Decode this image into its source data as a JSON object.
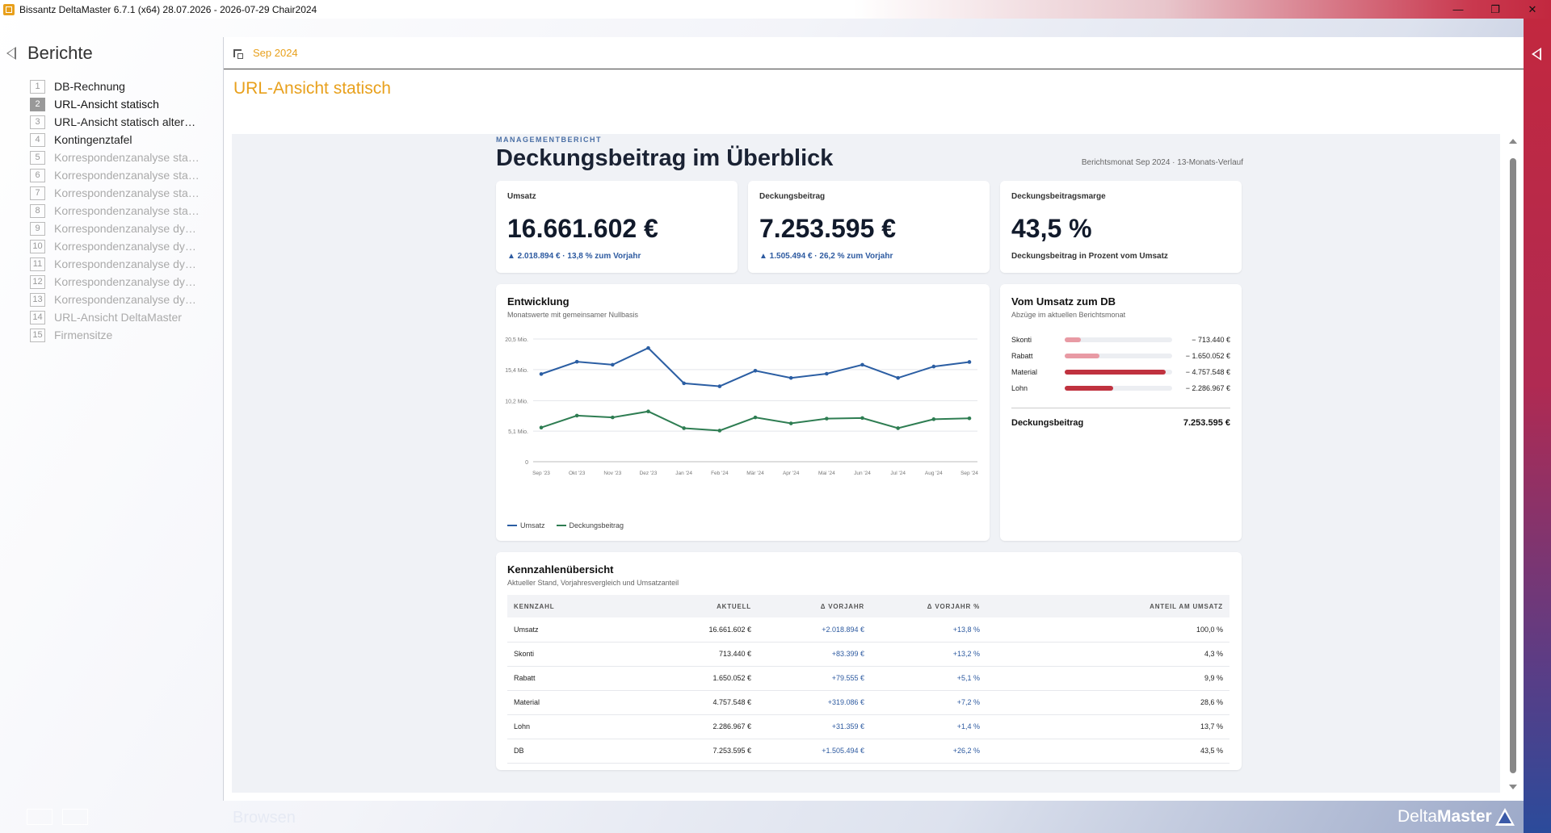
{
  "window": {
    "title": "Bissantz DeltaMaster 6.7.1 (x64) 28.07.2026 - 2026-07-29 Chair2024",
    "minimize": "—",
    "restore": "❐",
    "close": "✕"
  },
  "sidebar": {
    "title": "Berichte",
    "items": [
      {
        "num": "1",
        "label": "DB-Rechnung",
        "state": "normal"
      },
      {
        "num": "2",
        "label": "URL-Ansicht statisch",
        "state": "active"
      },
      {
        "num": "3",
        "label": "URL-Ansicht statisch alternat...",
        "state": "normal"
      },
      {
        "num": "4",
        "label": "Kontingenztafel",
        "state": "normal"
      },
      {
        "num": "5",
        "label": "Korrespondenzanalyse statis...",
        "state": "dim"
      },
      {
        "num": "6",
        "label": "Korrespondenzanalyse statis...",
        "state": "dim"
      },
      {
        "num": "7",
        "label": "Korrespondenzanalyse statis...",
        "state": "dim"
      },
      {
        "num": "8",
        "label": "Korrespondenzanalyse statis...",
        "state": "dim"
      },
      {
        "num": "9",
        "label": "Korrespondenzanalyse dyna...",
        "state": "dim"
      },
      {
        "num": "10",
        "label": "Korrespondenzanalyse dyna...",
        "state": "dim"
      },
      {
        "num": "11",
        "label": "Korrespondenzanalyse dyna...",
        "state": "dim"
      },
      {
        "num": "12",
        "label": "Korrespondenzanalyse dyna...",
        "state": "dim"
      },
      {
        "num": "13",
        "label": "Korrespondenzanalyse dyna...",
        "state": "dim"
      },
      {
        "num": "14",
        "label": "URL-Ansicht DeltaMaster",
        "state": "dim"
      },
      {
        "num": "15",
        "label": "Firmensitze",
        "state": "dim"
      }
    ]
  },
  "footer": {
    "mode": "Browsen",
    "brand_light": "Delta",
    "brand_bold": "Master"
  },
  "main": {
    "period": "Sep 2024",
    "page_title": "URL-Ansicht statisch"
  },
  "report": {
    "eyebrow": "MANAGEMENTBERICHT",
    "title": "Deckungsbeitrag im Überblick",
    "meta": "Berichtsmonat Sep 2024 · 13-Monats-Verlauf",
    "kpis": [
      {
        "label": "Umsatz",
        "value": "16.661.602 €",
        "delta": "▲ 2.018.894 € · 13,8 % zum Vorjahr"
      },
      {
        "label": "Deckungsbeitrag",
        "value": "7.253.595 €",
        "delta": "▲ 1.505.494 € · 26,2 % zum Vorjahr"
      },
      {
        "label": "Deckungsbeitragsmarge",
        "value": "43,5 %",
        "sub": "Deckungsbeitrag in Prozent vom Umsatz"
      }
    ],
    "development": {
      "title": "Entwicklung",
      "subtitle": "Monatswerte mit gemeinsamer Nullbasis"
    },
    "waterfall": {
      "title": "Vom Umsatz zum DB",
      "subtitle": "Abzüge im aktuellen Berichtsmonat",
      "rows": [
        {
          "label": "Skonti",
          "value": "− 713.440 €",
          "amount": 713440,
          "color": "#e89aa4"
        },
        {
          "label": "Rabatt",
          "value": "− 1.650.052 €",
          "amount": 1650052,
          "color": "#e89aa4"
        },
        {
          "label": "Material",
          "value": "− 4.757.548 €",
          "amount": 4757548,
          "color": "#c0323f"
        },
        {
          "label": "Lohn",
          "value": "− 2.286.967 €",
          "amount": 2286967,
          "color": "#c0323f"
        }
      ],
      "total_label": "Deckungsbeitrag",
      "total_value": "7.253.595 €"
    },
    "table": {
      "title": "Kennzahlenübersicht",
      "subtitle": "Aktueller Stand, Vorjahresvergleich und Umsatzanteil",
      "headers": [
        "KENNZAHL",
        "AKTUELL",
        "Δ VORJAHR",
        "Δ VORJAHR %",
        "ANTEIL AM UMSATZ"
      ],
      "rows": [
        [
          "Umsatz",
          "16.661.602 €",
          "+2.018.894 €",
          "+13,8 %",
          "100,0 %"
        ],
        [
          "Skonti",
          "713.440 €",
          "+83.399 €",
          "+13,2 %",
          "4,3 %"
        ],
        [
          "Rabatt",
          "1.650.052 €",
          "+79.555 €",
          "+5,1 %",
          "9,9 %"
        ],
        [
          "Material",
          "4.757.548 €",
          "+319.086 €",
          "+7,2 %",
          "28,6 %"
        ],
        [
          "Lohn",
          "2.286.967 €",
          "+31.359 €",
          "+1,4 %",
          "13,7 %"
        ],
        [
          "DB",
          "7.253.595 €",
          "+1.505.494 €",
          "+26,2 %",
          "43,5 %"
        ]
      ]
    }
  },
  "chart_data": {
    "type": "line",
    "categories": [
      "Sep '23",
      "Okt '23",
      "Nov '23",
      "Dez '23",
      "Jan '24",
      "Feb '24",
      "Mär '24",
      "Apr '24",
      "Mai '24",
      "Jun '24",
      "Jul '24",
      "Aug '24",
      "Sep '24"
    ],
    "series": [
      {
        "name": "Umsatz",
        "color": "#2b5ea3",
        "values": [
          14.65,
          16.7,
          16.2,
          19.0,
          13.1,
          12.6,
          15.2,
          14.0,
          14.7,
          16.2,
          14.0,
          15.9,
          16.66
        ]
      },
      {
        "name": "Deckungsbeitrag",
        "color": "#2e7d52",
        "values": [
          5.7,
          7.7,
          7.4,
          8.4,
          5.6,
          5.2,
          7.4,
          6.4,
          7.2,
          7.3,
          5.6,
          7.1,
          7.25
        ]
      }
    ],
    "yticks": [
      0,
      5.1,
      10.2,
      15.4,
      20.5
    ],
    "ytick_labels": [
      "0",
      "5,1 Mio.",
      "10,2 Mio.",
      "15,4 Mio.",
      "20,5 Mio."
    ],
    "ylim": [
      0,
      20.5
    ],
    "title": "Entwicklung",
    "subtitle": "Monatswerte mit gemeinsamer Nullbasis",
    "legend": "bottom-left"
  }
}
